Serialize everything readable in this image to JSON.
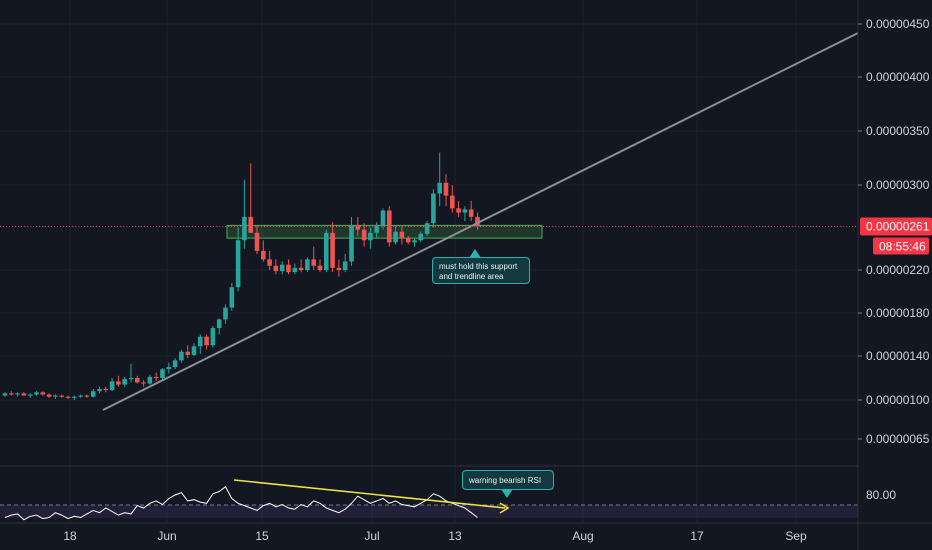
{
  "chart_data": {
    "type": "candlestick",
    "price_axis": {
      "ticks": [
        "0.00000450",
        "0.00000400",
        "0.00000350",
        "0.00000300",
        "0.00000220",
        "0.00000180",
        "0.00000140",
        "0.00000100",
        "0.00000065"
      ],
      "ylim": [
        5.5e-07,
        4.7e-06
      ]
    },
    "time_axis": {
      "ticks": [
        "18",
        "Jun",
        "15",
        "Jul",
        "13",
        "Aug",
        "17",
        "Sep"
      ]
    },
    "current_price": "0.00000261",
    "countdown": "08:55:46",
    "candles": [
      [
        1.04,
        1.07,
        1.03,
        1.06
      ],
      [
        1.06,
        1.08,
        1.04,
        1.05
      ],
      [
        1.05,
        1.07,
        1.03,
        1.06
      ],
      [
        1.06,
        1.07,
        1.04,
        1.04
      ],
      [
        1.04,
        1.06,
        1.02,
        1.05
      ],
      [
        1.05,
        1.08,
        1.04,
        1.07
      ],
      [
        1.07,
        1.08,
        1.04,
        1.05
      ],
      [
        1.05,
        1.06,
        1.02,
        1.03
      ],
      [
        1.03,
        1.05,
        1.01,
        1.04
      ],
      [
        1.04,
        1.05,
        1.02,
        1.03
      ],
      [
        1.03,
        1.04,
        1.01,
        1.02
      ],
      [
        1.02,
        1.04,
        1.0,
        1.03
      ],
      [
        1.03,
        1.05,
        1.02,
        1.04
      ],
      [
        1.04,
        1.05,
        1.02,
        1.03
      ],
      [
        1.03,
        1.1,
        1.02,
        1.08
      ],
      [
        1.08,
        1.12,
        1.06,
        1.1
      ],
      [
        1.1,
        1.12,
        1.07,
        1.09
      ],
      [
        1.09,
        1.2,
        1.08,
        1.17
      ],
      [
        1.17,
        1.22,
        1.12,
        1.14
      ],
      [
        1.14,
        1.21,
        1.12,
        1.19
      ],
      [
        1.19,
        1.33,
        1.16,
        1.2
      ],
      [
        1.2,
        1.22,
        1.15,
        1.16
      ],
      [
        1.16,
        1.18,
        1.12,
        1.15
      ],
      [
        1.15,
        1.23,
        1.14,
        1.21
      ],
      [
        1.21,
        1.25,
        1.17,
        1.2
      ],
      [
        1.2,
        1.29,
        1.18,
        1.28
      ],
      [
        1.28,
        1.34,
        1.24,
        1.3
      ],
      [
        1.3,
        1.38,
        1.28,
        1.36
      ],
      [
        1.36,
        1.46,
        1.34,
        1.44
      ],
      [
        1.44,
        1.5,
        1.38,
        1.41
      ],
      [
        1.41,
        1.52,
        1.4,
        1.49
      ],
      [
        1.49,
        1.6,
        1.42,
        1.58
      ],
      [
        1.58,
        1.6,
        1.46,
        1.5
      ],
      [
        1.5,
        1.68,
        1.48,
        1.66
      ],
      [
        1.66,
        1.75,
        1.6,
        1.74
      ],
      [
        1.74,
        1.88,
        1.7,
        1.85
      ],
      [
        1.85,
        2.08,
        1.82,
        2.04
      ],
      [
        2.04,
        2.6,
        2.0,
        2.48
      ],
      [
        2.48,
        3.05,
        2.4,
        2.7
      ],
      [
        2.7,
        3.2,
        2.55,
        2.55
      ],
      [
        2.55,
        2.62,
        2.35,
        2.38
      ],
      [
        2.38,
        2.48,
        2.28,
        2.3
      ],
      [
        2.3,
        2.38,
        2.2,
        2.24
      ],
      [
        2.24,
        2.3,
        2.16,
        2.19
      ],
      [
        2.19,
        2.28,
        2.16,
        2.25
      ],
      [
        2.25,
        2.3,
        2.16,
        2.18
      ],
      [
        2.18,
        2.26,
        2.16,
        2.22
      ],
      [
        2.22,
        2.3,
        2.18,
        2.2
      ],
      [
        2.2,
        2.32,
        2.18,
        2.3
      ],
      [
        2.3,
        2.42,
        2.2,
        2.24
      ],
      [
        2.24,
        2.3,
        2.18,
        2.2
      ],
      [
        2.2,
        2.58,
        2.18,
        2.55
      ],
      [
        2.55,
        2.65,
        2.18,
        2.22
      ],
      [
        2.22,
        2.3,
        2.14,
        2.2
      ],
      [
        2.2,
        2.35,
        2.18,
        2.28
      ],
      [
        2.28,
        2.7,
        2.24,
        2.62
      ],
      [
        2.62,
        2.7,
        2.52,
        2.58
      ],
      [
        2.58,
        2.64,
        2.42,
        2.48
      ],
      [
        2.48,
        2.6,
        2.4,
        2.55
      ],
      [
        2.55,
        2.65,
        2.5,
        2.62
      ],
      [
        2.62,
        2.78,
        2.58,
        2.76
      ],
      [
        2.76,
        2.8,
        2.42,
        2.46
      ],
      [
        2.46,
        2.62,
        2.44,
        2.56
      ],
      [
        2.56,
        2.62,
        2.44,
        2.5
      ],
      [
        2.5,
        2.52,
        2.44,
        2.46
      ],
      [
        2.46,
        2.5,
        2.42,
        2.48
      ],
      [
        2.48,
        2.56,
        2.46,
        2.54
      ],
      [
        2.54,
        2.66,
        2.52,
        2.64
      ],
      [
        2.64,
        2.96,
        2.6,
        2.92
      ],
      [
        2.92,
        3.3,
        2.8,
        3.02
      ],
      [
        3.02,
        3.1,
        2.8,
        2.9
      ],
      [
        2.9,
        3.0,
        2.74,
        2.78
      ],
      [
        2.78,
        2.85,
        2.7,
        2.74
      ],
      [
        2.74,
        2.8,
        2.66,
        2.77
      ],
      [
        2.77,
        2.85,
        2.66,
        2.7
      ],
      [
        2.7,
        2.74,
        2.58,
        2.61
      ]
    ],
    "trendline": {
      "from": [
        "2020-05-22",
        8e-07
      ],
      "to": [
        "2020-09-07",
        4.5e-06
      ]
    },
    "support_zone": {
      "low": 2.5e-06,
      "high": 2.62e-06
    },
    "rsi": {
      "level_label": "80.00",
      "values": [
        58,
        60,
        61,
        56,
        59,
        60,
        57,
        58,
        62,
        60,
        57,
        59,
        58,
        61,
        64,
        62,
        66,
        63,
        60,
        62,
        61,
        68,
        66,
        70,
        72,
        69,
        74,
        77,
        79,
        72,
        73,
        71,
        70,
        78,
        80,
        84,
        74,
        70,
        68,
        66,
        64,
        68,
        70,
        67,
        69,
        66,
        65,
        69,
        67,
        72,
        70,
        66,
        64,
        62,
        65,
        70,
        76,
        73,
        70,
        72,
        74,
        70,
        72,
        69,
        68,
        67,
        70,
        73,
        78,
        76,
        72,
        70,
        68,
        66,
        62,
        58
      ]
    },
    "annotations": [
      "must hold this support and trendline area",
      "warning bearish RSI"
    ],
    "colors": {
      "background": "#131722",
      "up": "#26a69a",
      "down": "#ef5350",
      "trendline": "#8c8f99",
      "support_zone": "#4caf50",
      "rsi_line": "#ffffff",
      "rsi_divergence": "#f0e442",
      "note_bg": "#12393f",
      "note_border": "#2bb2ac",
      "price_tag": "#f23645"
    }
  }
}
